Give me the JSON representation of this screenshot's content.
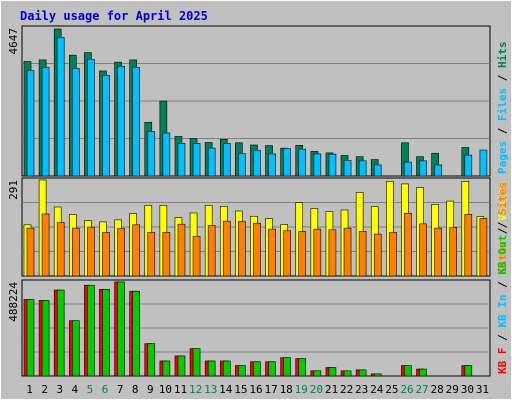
{
  "colors": {
    "background": "#c0c0c0",
    "panel": "#c0c0c0",
    "title": "#0000cc",
    "hits": "#00805c",
    "files": "#00c0ff",
    "pages": "#00c0ff",
    "visits": "#ffff00",
    "sites": "#ff8000",
    "kb_in": "#00cc00",
    "kb_out": "#00cc00",
    "kb_f": "#ff0000",
    "weekend_day": "#00805c",
    "weekday": "#000000"
  },
  "chart_data": {
    "type": "bar",
    "title": "Daily usage for April 2025",
    "days": [
      "1",
      "2",
      "3",
      "4",
      "5",
      "6",
      "7",
      "8",
      "9",
      "10",
      "11",
      "12",
      "13",
      "14",
      "15",
      "16",
      "17",
      "18",
      "19",
      "20",
      "21",
      "22",
      "23",
      "24",
      "25",
      "26",
      "27",
      "28",
      "29",
      "30",
      "31"
    ],
    "weekend_days": [
      "5",
      "6",
      "12",
      "13",
      "19",
      "20",
      "26",
      "27"
    ],
    "panels": [
      {
        "id": "hits-files-pages",
        "max_label": "4647",
        "ylim": [
          0,
          4647
        ],
        "right_labels": [
          {
            "text": "Pages",
            "color_key": "pages"
          },
          {
            "text": " / ",
            "color_key": "weekday"
          },
          {
            "text": "Files",
            "color_key": "files"
          },
          {
            "text": " / ",
            "color_key": "weekday"
          },
          {
            "text": "Hits",
            "color_key": "hits"
          }
        ],
        "series": [
          {
            "name": "Hits",
            "color_key": "hits",
            "values": [
              3620,
              3670,
              4647,
              3820,
              3900,
              3320,
              3600,
              3670,
              1700,
              2370,
              1250,
              1180,
              1060,
              1160,
              1050,
              980,
              960,
              880,
              970,
              780,
              730,
              650,
              610,
              520,
              0,
              1050,
              610,
              720,
              0,
              900,
              0
            ]
          },
          {
            "name": "Files",
            "color_key": "files",
            "values": [
              3330,
              3430,
              4380,
              3400,
              3690,
              3180,
              3470,
              3430,
              1400,
              1360,
              1030,
              1030,
              880,
              1030,
              710,
              810,
              700,
              870,
              850,
              700,
              690,
              490,
              480,
              350,
              0,
              440,
              480,
              350,
              0,
              660,
              820
            ]
          }
        ]
      },
      {
        "id": "visits-sites",
        "max_label": "291",
        "ylim": [
          0,
          291
        ],
        "right_labels": [
          {
            "text": "Sites",
            "color_key": "sites"
          },
          {
            "text": " / ",
            "color_key": "weekday"
          },
          {
            "text": "Visits",
            "color_key": "visits"
          }
        ],
        "series": [
          {
            "name": "Visits",
            "color_key": "visits",
            "values": [
              155,
              291,
              209,
              186,
              168,
              164,
              170,
              189,
              214,
              214,
              177,
              191,
              214,
              211,
              197,
              181,
              174,
              156,
              222,
              204,
              195,
              200,
              253,
              210,
              287,
              279,
              268,
              217,
              227,
              287,
              180
            ]
          },
          {
            "name": "Sites",
            "color_key": "sites",
            "values": [
              145,
              188,
              162,
              145,
              148,
              132,
              144,
              155,
              132,
              132,
              157,
              120,
              153,
              166,
              165,
              160,
              142,
              137,
              135,
              142,
              140,
              145,
              135,
              127,
              132,
              190,
              158,
              145,
              147,
              187,
              174
            ]
          }
        ]
      },
      {
        "id": "kb",
        "max_label": "488224",
        "ylim": [
          0,
          488224
        ],
        "right_labels": [
          {
            "text": "KB F",
            "color_key": "kb_f"
          },
          {
            "text": " / ",
            "color_key": "weekday"
          },
          {
            "text": "KB In",
            "color_key": "files"
          },
          {
            "text": " / ",
            "color_key": "weekday"
          },
          {
            "text": "KB Out",
            "color_key": "kb_out"
          },
          {
            "text": " / ",
            "color_key": "weekday"
          },
          {
            "text": "Sites",
            "color_key": "sites"
          }
        ],
        "series": [
          {
            "name": "KB F",
            "color_key": "kb_f",
            "values": [
              397000,
              392000,
              446000,
              287000,
              471000,
              450000,
              488224,
              440000,
              168000,
              78000,
              104000,
              142000,
              78000,
              78000,
              54000,
              74000,
              74000,
              95000,
              90000,
              27000,
              44000,
              27000,
              32000,
              11000,
              0,
              54000,
              36000,
              0,
              0,
              54000,
              0
            ]
          },
          {
            "name": "KB Out",
            "color_key": "kb_out",
            "values": [
              397000,
              392000,
              446000,
              287000,
              471000,
              450000,
              488224,
              440000,
              168000,
              78000,
              104000,
              142000,
              78000,
              78000,
              54000,
              74000,
              74000,
              95000,
              90000,
              27000,
              44000,
              27000,
              32000,
              11000,
              0,
              54000,
              36000,
              0,
              0,
              54000,
              0
            ]
          }
        ]
      }
    ]
  }
}
